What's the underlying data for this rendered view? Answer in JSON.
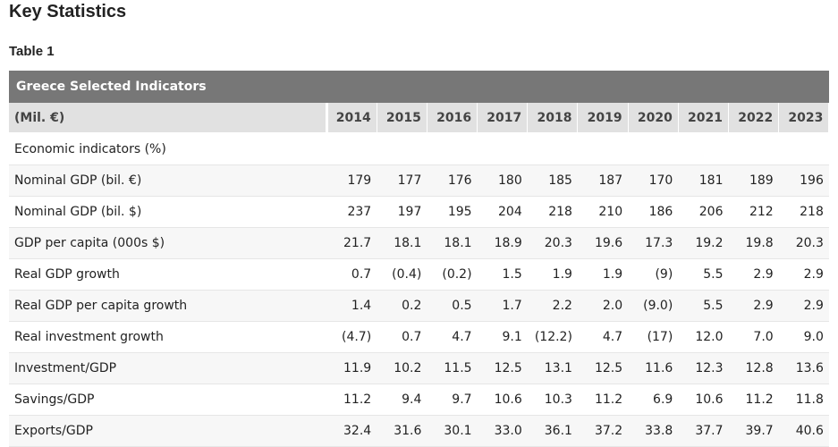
{
  "page": {
    "title": "Key Statistics",
    "table_label": "Table 1"
  },
  "table": {
    "caption": "Greece Selected Indicators",
    "unit_label": "(Mil. €)",
    "years": [
      "2014",
      "2015",
      "2016",
      "2017",
      "2018",
      "2019",
      "2020",
      "2021",
      "2022",
      "2023"
    ],
    "section_label": "Economic indicators (%)",
    "rows": [
      {
        "label": "Nominal GDP (bil. €)",
        "values": [
          "179",
          "177",
          "176",
          "180",
          "185",
          "187",
          "170",
          "181",
          "189",
          "196"
        ]
      },
      {
        "label": "Nominal GDP (bil. $)",
        "values": [
          "237",
          "197",
          "195",
          "204",
          "218",
          "210",
          "186",
          "206",
          "212",
          "218"
        ]
      },
      {
        "label": "GDP per capita (000s $)",
        "values": [
          "21.7",
          "18.1",
          "18.1",
          "18.9",
          "20.3",
          "19.6",
          "17.3",
          "19.2",
          "19.8",
          "20.3"
        ]
      },
      {
        "label": "Real GDP growth",
        "values": [
          "0.7",
          "(0.4)",
          "(0.2)",
          "1.5",
          "1.9",
          "1.9",
          "(9)",
          "5.5",
          "2.9",
          "2.9"
        ]
      },
      {
        "label": "Real GDP per capita growth",
        "values": [
          "1.4",
          "0.2",
          "0.5",
          "1.7",
          "2.2",
          "2.0",
          "(9.0)",
          "5.5",
          "2.9",
          "2.9"
        ]
      },
      {
        "label": "Real investment growth",
        "values": [
          "(4.7)",
          "0.7",
          "4.7",
          "9.1",
          "(12.2)",
          "4.7",
          "(17)",
          "12.0",
          "7.0",
          "9.0"
        ]
      },
      {
        "label": "Investment/GDP",
        "values": [
          "11.9",
          "10.2",
          "11.5",
          "12.5",
          "13.1",
          "12.5",
          "11.6",
          "12.3",
          "12.8",
          "13.6"
        ]
      },
      {
        "label": "Savings/GDP",
        "values": [
          "11.2",
          "9.4",
          "9.7",
          "10.6",
          "10.3",
          "11.2",
          "6.9",
          "10.6",
          "11.2",
          "11.8"
        ]
      },
      {
        "label": "Exports/GDP",
        "values": [
          "32.4",
          "31.6",
          "30.1",
          "33.0",
          "36.1",
          "37.2",
          "33.8",
          "37.7",
          "39.7",
          "40.6"
        ]
      }
    ]
  },
  "colors": {
    "caption_bg": "#777777",
    "header_bg": "#e1e1e1",
    "stripe_bg": "#f7f7f7"
  }
}
